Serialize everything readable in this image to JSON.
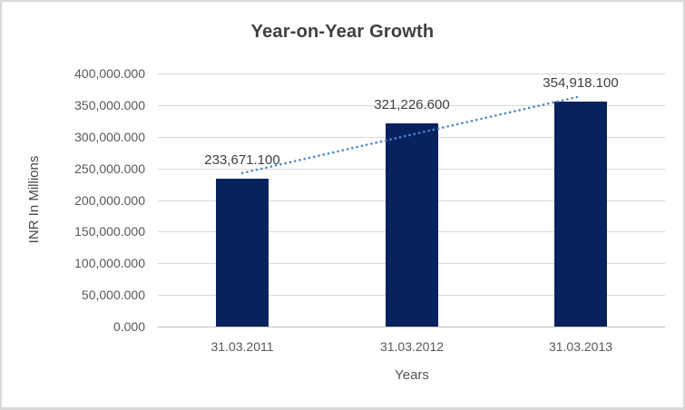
{
  "chart_data": {
    "type": "bar",
    "title": "Year-on-Year Growth",
    "xlabel": "Years",
    "ylabel": "INR In Millions",
    "categories": [
      "31.03.2011",
      "31.03.2012",
      "31.03.2013"
    ],
    "values": [
      233671.1,
      321226.6,
      354918.1
    ],
    "data_labels": [
      "233,671.100",
      "321,226.600",
      "354,918.100"
    ],
    "ylim": [
      0,
      400000
    ],
    "ytick_step": 50000,
    "ytick_labels": [
      "0.000",
      "50,000.000",
      "100,000.000",
      "150,000.000",
      "200,000.000",
      "250,000.000",
      "300,000.000",
      "350,000.000",
      "400,000.000"
    ],
    "grid": true,
    "legend": "none",
    "trendline": {
      "type": "linear",
      "style": "dotted"
    },
    "colors": {
      "bar": "#08225e",
      "trendline": "#4b88cc",
      "gridline": "#d9d9d9",
      "axis_line": "#bfbfbf",
      "title_text": "#3f3f3f",
      "tick_text": "#595959",
      "data_label_text": "#404040",
      "border": "#d9d9d9",
      "background": "#ffffff"
    }
  }
}
